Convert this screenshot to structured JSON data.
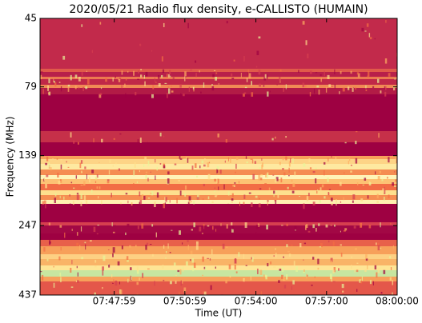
{
  "chart_data": {
    "type": "spectrogram",
    "title": "2020/05/21  Radio flux density, e-CALLISTO (HUMAIN)",
    "x_label": "Time (UT)",
    "y_label": "Frequency (MHz)",
    "xlim": [
      "07:44:50",
      "08:00:00"
    ],
    "xticks": [
      "07:47:59",
      "07:50:59",
      "07:54:00",
      "07:57:00",
      "08:00:00"
    ],
    "ylim": [
      45,
      437
    ],
    "yticks": [
      45,
      79,
      139,
      247,
      437
    ],
    "y_log_scale": true,
    "y_inverted": true
  }
}
